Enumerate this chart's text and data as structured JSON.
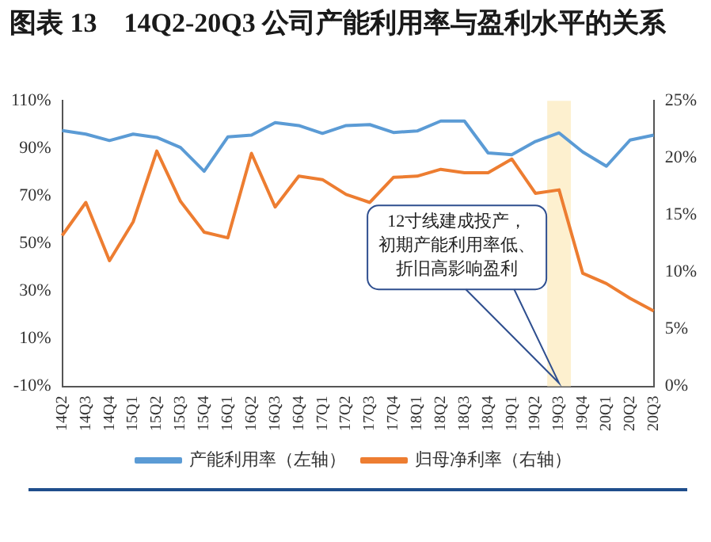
{
  "chart_data": {
    "type": "line",
    "title": "图表 13　14Q2-20Q3 公司产能利用率与盈利水平的关系",
    "categories": [
      "14Q2",
      "14Q3",
      "14Q4",
      "15Q1",
      "15Q2",
      "15Q3",
      "15Q4",
      "16Q1",
      "16Q2",
      "16Q3",
      "16Q4",
      "17Q1",
      "17Q2",
      "17Q3",
      "17Q4",
      "18Q1",
      "18Q2",
      "18Q3",
      "18Q4",
      "19Q1",
      "19Q2",
      "19Q3",
      "19Q4",
      "20Q1",
      "20Q2",
      "20Q3"
    ],
    "series": [
      {
        "name": "产能利用率（左轴）",
        "color": "#5b9bd5",
        "values": [
          97.5,
          96,
          93.3,
          96,
          94.6,
          90.4,
          80.4,
          94.8,
          95.6,
          100.8,
          99.6,
          96.3,
          99.6,
          100,
          96.7,
          97.3,
          101.5,
          101.5,
          88.1,
          87.3,
          92.9,
          96.5,
          88.5,
          82.5,
          93.5,
          95.6
        ]
      },
      {
        "name": "归母净利率（右轴）",
        "color": "#ed7d31",
        "axis": "y2",
        "values": [
          13.2,
          16.1,
          11,
          14.4,
          20.6,
          16.2,
          13.5,
          13,
          20.4,
          15.7,
          18.4,
          18.1,
          16.8,
          16.1,
          18.3,
          18.4,
          19,
          18.7,
          18.7,
          19.9,
          16.9,
          17.2,
          9.9,
          9,
          7.7,
          6.6
        ]
      }
    ],
    "ylim": [
      -10,
      110
    ],
    "yticks": [
      {
        "value": -10,
        "label": "-10%"
      },
      {
        "value": 10,
        "label": "10%"
      },
      {
        "value": 30,
        "label": "30%"
      },
      {
        "value": 50,
        "label": "50%"
      },
      {
        "value": 70,
        "label": "70%"
      },
      {
        "value": 90,
        "label": "90%"
      },
      {
        "value": 110,
        "label": "110%"
      }
    ],
    "y2lim": [
      0,
      25
    ],
    "y2ticks": [
      {
        "value": 0,
        "label": "0%"
      },
      {
        "value": 5,
        "label": "5%"
      },
      {
        "value": 10,
        "label": "10%"
      },
      {
        "value": 15,
        "label": "15%"
      },
      {
        "value": 20,
        "label": "20%"
      },
      {
        "value": 25,
        "label": "25%"
      }
    ],
    "bands": [
      {
        "axis": "x",
        "from": "19Q3",
        "to": "19Q3",
        "color": "#fdf0cf"
      }
    ],
    "annotations": [
      "12寸线建成投产，初期产能利用率低、折旧高影响盈利"
    ],
    "grid": false,
    "legend": "bottom",
    "marker": "none",
    "line_style": "solid"
  }
}
